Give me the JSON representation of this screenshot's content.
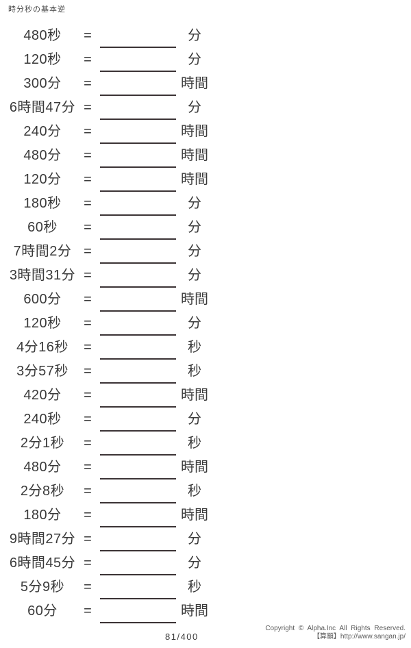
{
  "title": "時分秒の基本逆",
  "equals_sign": "=",
  "problems": [
    {
      "expression": "480秒",
      "unit": "分"
    },
    {
      "expression": "120秒",
      "unit": "分"
    },
    {
      "expression": "300分",
      "unit": "時間"
    },
    {
      "expression": "6時間47分",
      "unit": "分"
    },
    {
      "expression": "240分",
      "unit": "時間"
    },
    {
      "expression": "480分",
      "unit": "時間"
    },
    {
      "expression": "120分",
      "unit": "時間"
    },
    {
      "expression": "180秒",
      "unit": "分"
    },
    {
      "expression": "60秒",
      "unit": "分"
    },
    {
      "expression": "7時間2分",
      "unit": "分"
    },
    {
      "expression": "3時間31分",
      "unit": "分"
    },
    {
      "expression": "600分",
      "unit": "時間"
    },
    {
      "expression": "120秒",
      "unit": "分"
    },
    {
      "expression": "4分16秒",
      "unit": "秒"
    },
    {
      "expression": "3分57秒",
      "unit": "秒"
    },
    {
      "expression": "420分",
      "unit": "時間"
    },
    {
      "expression": "240秒",
      "unit": "分"
    },
    {
      "expression": "2分1秒",
      "unit": "秒"
    },
    {
      "expression": "480分",
      "unit": "時間"
    },
    {
      "expression": "2分8秒",
      "unit": "秒"
    },
    {
      "expression": "180分",
      "unit": "時間"
    },
    {
      "expression": "9時間27分",
      "unit": "分"
    },
    {
      "expression": "6時間45分",
      "unit": "分"
    },
    {
      "expression": "5分9秒",
      "unit": "秒"
    },
    {
      "expression": "60分",
      "unit": "時間"
    }
  ],
  "page_number": "81/400",
  "footer": {
    "copyright": "Copyright © Alpha.Inc All Rights Reserved.",
    "site": "【算願】http://www.sangan.jp/"
  },
  "colors": {
    "text": "#3a3a3a",
    "blank_line": "#3b3335",
    "footer_text": "#5a5a5a",
    "background": "#ffffff"
  }
}
